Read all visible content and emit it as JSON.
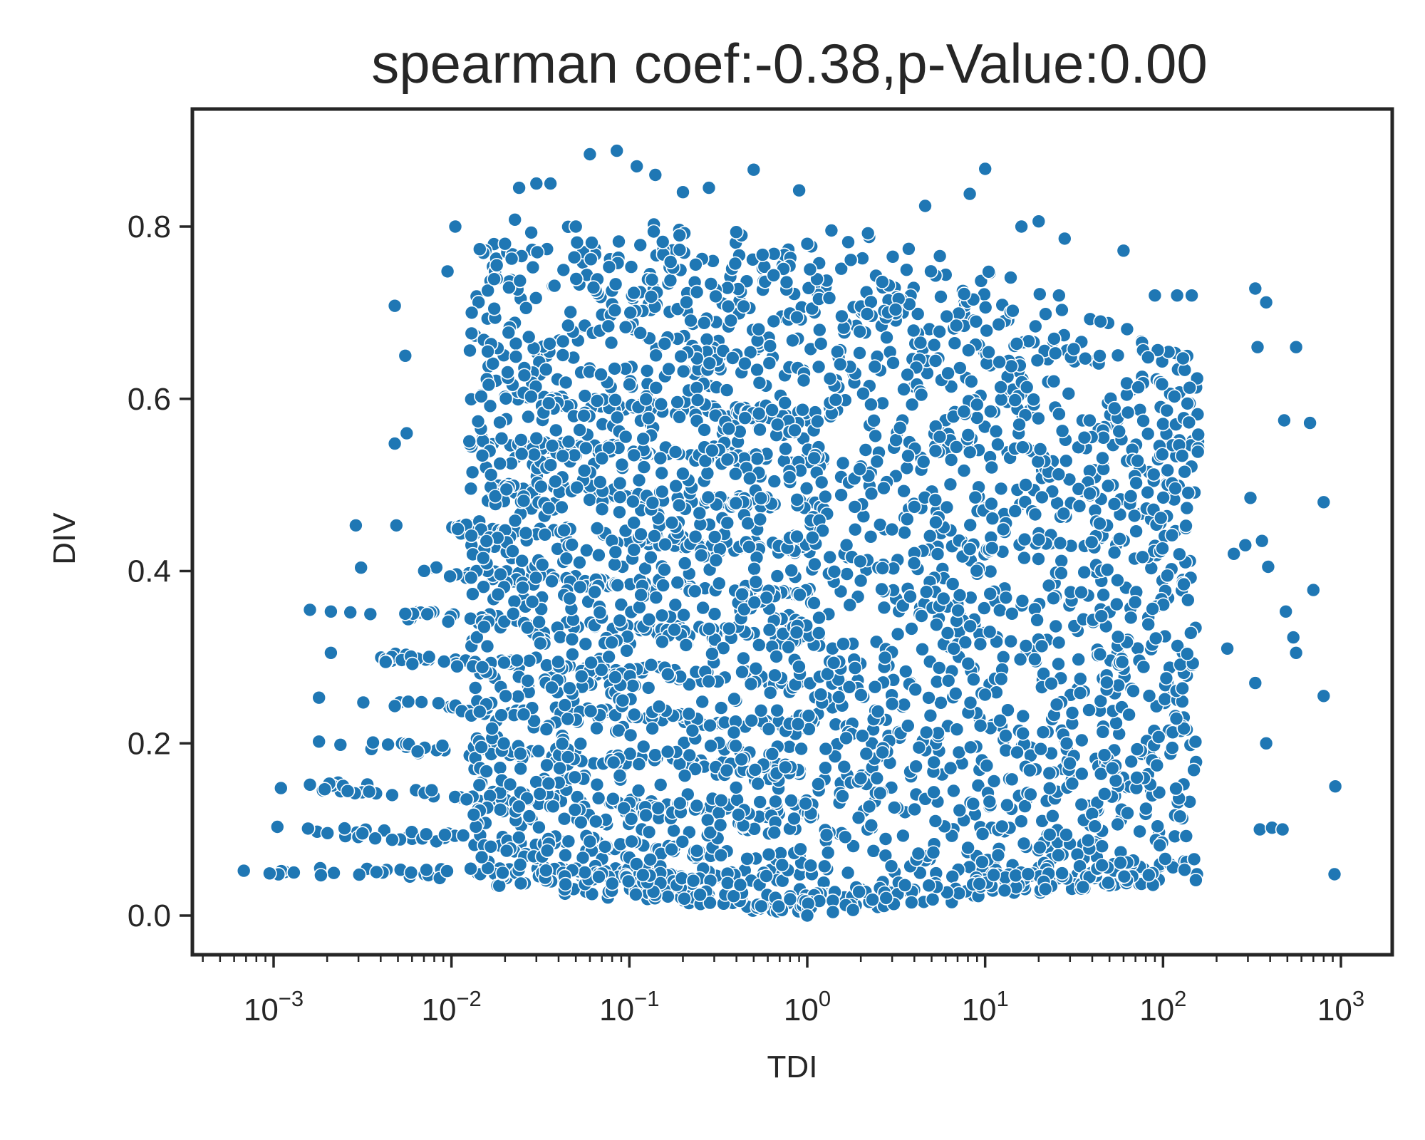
{
  "chart_data": {
    "type": "scatter",
    "title": "spearman coef:-0.38,p-Value:0.00",
    "xlabel": "TDI",
    "ylabel": "DIV",
    "x_scale": "log",
    "xlim": [
      0.00035,
      2000
    ],
    "ylim": [
      -0.045,
      0.935
    ],
    "y_ticks": [
      {
        "value": 0.0,
        "label": "0.0"
      },
      {
        "value": 0.2,
        "label": "0.2"
      },
      {
        "value": 0.4,
        "label": "0.4"
      },
      {
        "value": 0.6,
        "label": "0.6"
      },
      {
        "value": 0.8,
        "label": "0.8"
      }
    ],
    "x_ticks": [
      {
        "value": 0.001,
        "base": "10",
        "exp": "−3"
      },
      {
        "value": 0.01,
        "base": "10",
        "exp": "−2"
      },
      {
        "value": 0.1,
        "base": "10",
        "exp": "−1"
      },
      {
        "value": 1,
        "base": "10",
        "exp": "0"
      },
      {
        "value": 10,
        "base": "10",
        "exp": "1"
      },
      {
        "value": 100,
        "base": "10",
        "exp": "2"
      },
      {
        "value": 1000,
        "base": "10",
        "exp": "3"
      }
    ],
    "grid": false,
    "marker_color": "#1f77b4",
    "marker_edge_color": "#ffffff",
    "series": [
      {
        "points": [
          [
            0.00068,
            0.052
          ],
          [
            0.00095,
            0.049
          ],
          [
            0.00105,
            0.103
          ],
          [
            0.0011,
            0.148
          ],
          [
            0.0013,
            0.05
          ],
          [
            0.0016,
            0.152
          ],
          [
            0.0016,
            0.355
          ],
          [
            0.0018,
            0.253
          ],
          [
            0.0018,
            0.202
          ],
          [
            0.0021,
            0.305
          ],
          [
            0.0021,
            0.353
          ],
          [
            0.0027,
            0.352
          ],
          [
            0.0029,
            0.453
          ],
          [
            0.0031,
            0.404
          ],
          [
            0.0035,
            0.35
          ],
          [
            0.0048,
            0.708
          ],
          [
            0.0048,
            0.548
          ],
          [
            0.0049,
            0.453
          ],
          [
            0.0055,
            0.65
          ],
          [
            0.0056,
            0.56
          ],
          [
            0.0095,
            0.748
          ],
          [
            0.0105,
            0.8
          ],
          [
            0.013,
            0.7
          ],
          [
            0.016,
            0.655
          ],
          [
            0.02,
            0.78
          ],
          [
            0.024,
            0.845
          ],
          [
            0.03,
            0.85
          ],
          [
            0.036,
            0.85
          ],
          [
            0.05,
            0.8
          ],
          [
            0.06,
            0.884
          ],
          [
            0.085,
            0.888
          ],
          [
            0.11,
            0.87
          ],
          [
            0.14,
            0.86
          ],
          [
            0.2,
            0.84
          ],
          [
            0.28,
            0.845
          ],
          [
            0.5,
            0.866
          ],
          [
            0.9,
            0.842
          ],
          [
            1.0,
            0.78
          ],
          [
            1.0,
            0.0
          ],
          [
            1.7,
            0.782
          ],
          [
            4.6,
            0.824
          ],
          [
            10,
            0.867
          ],
          [
            8.2,
            0.838
          ],
          [
            16,
            0.8
          ],
          [
            20,
            0.806
          ],
          [
            28,
            0.786
          ],
          [
            60,
            0.772
          ],
          [
            90,
            0.72
          ],
          [
            120,
            0.72
          ],
          [
            145,
            0.72
          ],
          [
            330,
            0.728
          ],
          [
            380,
            0.712
          ],
          [
            560,
            0.66
          ],
          [
            340,
            0.66
          ],
          [
            480,
            0.575
          ],
          [
            670,
            0.572
          ],
          [
            800,
            0.48
          ],
          [
            700,
            0.378
          ],
          [
            490,
            0.353
          ],
          [
            540,
            0.323
          ],
          [
            560,
            0.305
          ],
          [
            800,
            0.255
          ],
          [
            380,
            0.2
          ],
          [
            930,
            0.15
          ],
          [
            350,
            0.1
          ],
          [
            410,
            0.102
          ],
          [
            470,
            0.1
          ],
          [
            920,
            0.048
          ],
          [
            330,
            0.27
          ],
          [
            310,
            0.485
          ],
          [
            360,
            0.435
          ],
          [
            290,
            0.43
          ],
          [
            390,
            0.405
          ],
          [
            250,
            0.42
          ],
          [
            230,
            0.31
          ]
        ]
      }
    ]
  }
}
